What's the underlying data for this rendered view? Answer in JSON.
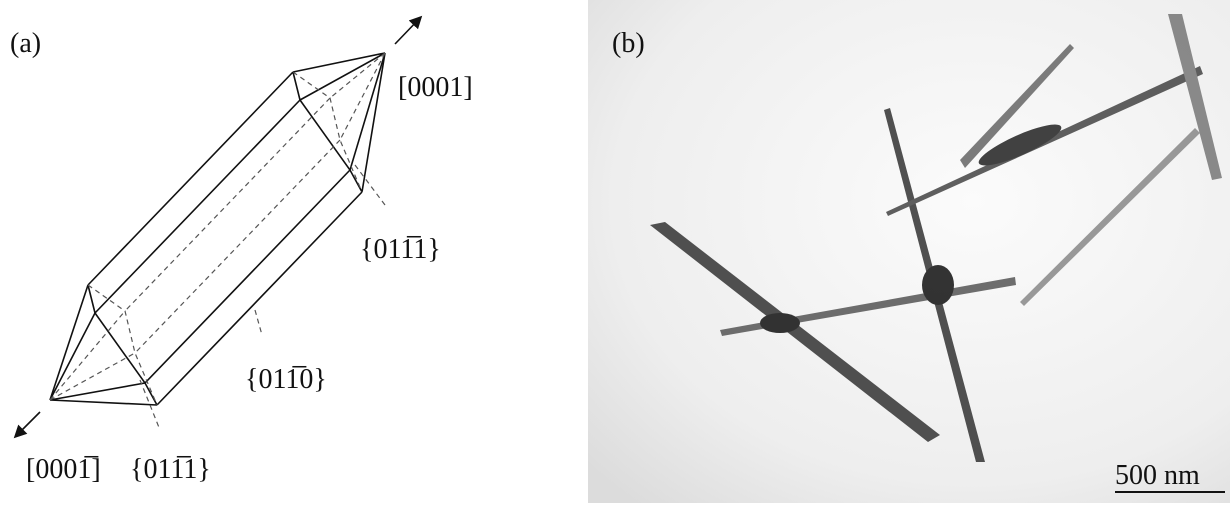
{
  "panel_a": {
    "label": "(a)",
    "direction_top": "[0001]",
    "face_pyramid_top": "{011̅1}",
    "face_prism": "{011̅0}",
    "direction_bottom": "[0001̅]",
    "face_pyramid_bottom": "{011̅1}"
  },
  "panel_b": {
    "label": "(b)",
    "scale_bar": "500 nm"
  }
}
